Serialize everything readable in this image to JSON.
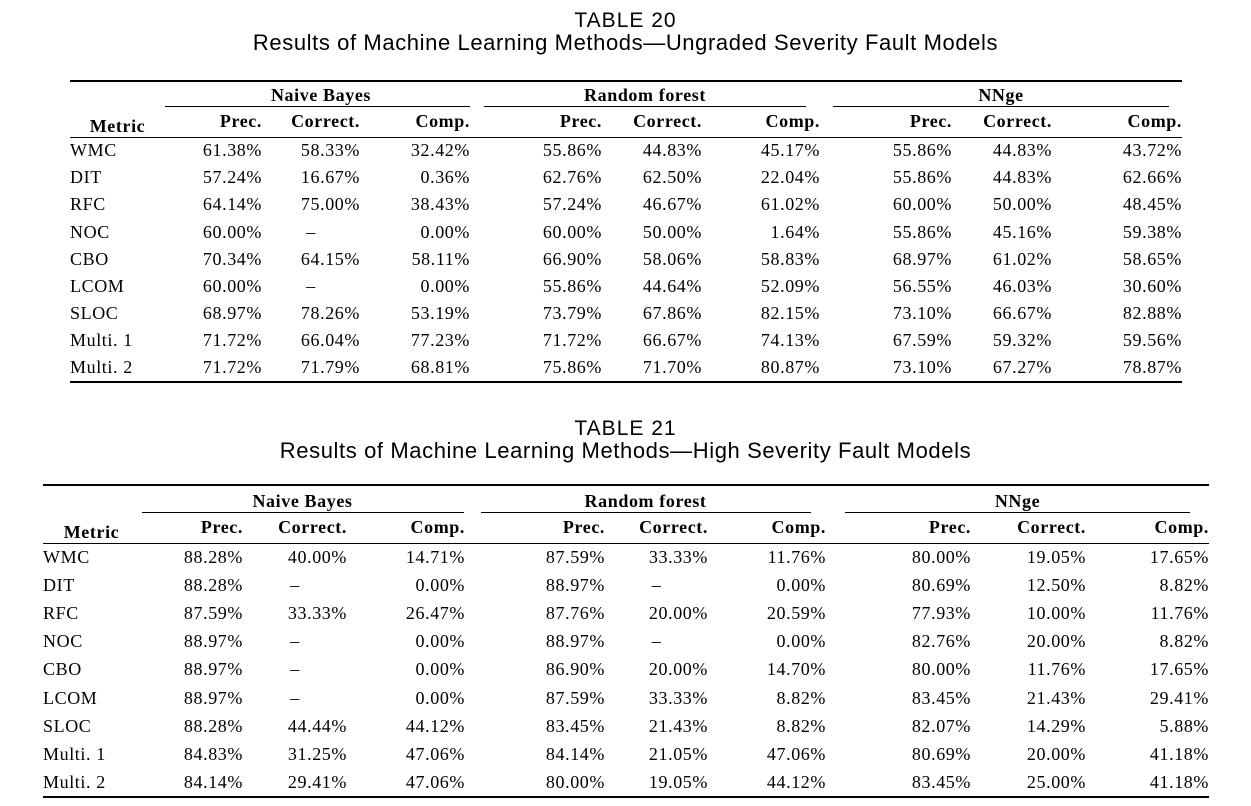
{
  "table20": {
    "number": "TABLE 20",
    "title": "Results of Machine Learning Methods—Ungraded Severity Fault Models",
    "metric_header": "Metric",
    "groups": [
      "Naive Bayes",
      "Random forest",
      "NNge"
    ],
    "subheaders": [
      "Prec.",
      "Correct.",
      "Comp."
    ],
    "rows": [
      {
        "metric": "WMC",
        "values": [
          "61.38%",
          "58.33%",
          "32.42%",
          "55.86%",
          "44.83%",
          "45.17%",
          "55.86%",
          "44.83%",
          "43.72%"
        ]
      },
      {
        "metric": "DIT",
        "values": [
          "57.24%",
          "16.67%",
          "0.36%",
          "62.76%",
          "62.50%",
          "22.04%",
          "55.86%",
          "44.83%",
          "62.66%"
        ]
      },
      {
        "metric": "RFC",
        "values": [
          "64.14%",
          "75.00%",
          "38.43%",
          "57.24%",
          "46.67%",
          "61.02%",
          "60.00%",
          "50.00%",
          "48.45%"
        ]
      },
      {
        "metric": "NOC",
        "values": [
          "60.00%",
          "–",
          "0.00%",
          "60.00%",
          "50.00%",
          "1.64%",
          "55.86%",
          "45.16%",
          "59.38%"
        ]
      },
      {
        "metric": "CBO",
        "values": [
          "70.34%",
          "64.15%",
          "58.11%",
          "66.90%",
          "58.06%",
          "58.83%",
          "68.97%",
          "61.02%",
          "58.65%"
        ]
      },
      {
        "metric": "LCOM",
        "values": [
          "60.00%",
          "–",
          "0.00%",
          "55.86%",
          "44.64%",
          "52.09%",
          "56.55%",
          "46.03%",
          "30.60%"
        ]
      },
      {
        "metric": "SLOC",
        "values": [
          "68.97%",
          "78.26%",
          "53.19%",
          "73.79%",
          "67.86%",
          "82.15%",
          "73.10%",
          "66.67%",
          "82.88%"
        ]
      },
      {
        "metric": "Multi. 1",
        "values": [
          "71.72%",
          "66.04%",
          "77.23%",
          "71.72%",
          "66.67%",
          "74.13%",
          "67.59%",
          "59.32%",
          "59.56%"
        ]
      },
      {
        "metric": "Multi. 2",
        "values": [
          "71.72%",
          "71.79%",
          "68.81%",
          "75.86%",
          "71.70%",
          "80.87%",
          "73.10%",
          "67.27%",
          "78.87%"
        ]
      }
    ]
  },
  "table21": {
    "number": "TABLE 21",
    "title": "Results of Machine Learning Methods—High Severity Fault Models",
    "metric_header": "Metric",
    "groups": [
      "Naive Bayes",
      "Random forest",
      "NNge"
    ],
    "subheaders": [
      "Prec.",
      "Correct.",
      "Comp."
    ],
    "rows": [
      {
        "metric": "WMC",
        "values": [
          "88.28%",
          "40.00%",
          "14.71%",
          "87.59%",
          "33.33%",
          "11.76%",
          "80.00%",
          "19.05%",
          "17.65%"
        ]
      },
      {
        "metric": "DIT",
        "values": [
          "88.28%",
          "–",
          "0.00%",
          "88.97%",
          "–",
          "0.00%",
          "80.69%",
          "12.50%",
          "8.82%"
        ]
      },
      {
        "metric": "RFC",
        "values": [
          "87.59%",
          "33.33%",
          "26.47%",
          "87.76%",
          "20.00%",
          "20.59%",
          "77.93%",
          "10.00%",
          "11.76%"
        ]
      },
      {
        "metric": "NOC",
        "values": [
          "88.97%",
          "–",
          "0.00%",
          "88.97%",
          "–",
          "0.00%",
          "82.76%",
          "20.00%",
          "8.82%"
        ]
      },
      {
        "metric": "CBO",
        "values": [
          "88.97%",
          "–",
          "0.00%",
          "86.90%",
          "20.00%",
          "14.70%",
          "80.00%",
          "11.76%",
          "17.65%"
        ]
      },
      {
        "metric": "LCOM",
        "values": [
          "88.97%",
          "–",
          "0.00%",
          "87.59%",
          "33.33%",
          "8.82%",
          "83.45%",
          "21.43%",
          "29.41%"
        ]
      },
      {
        "metric": "SLOC",
        "values": [
          "88.28%",
          "44.44%",
          "44.12%",
          "83.45%",
          "21.43%",
          "8.82%",
          "82.07%",
          "14.29%",
          "5.88%"
        ]
      },
      {
        "metric": "Multi. 1",
        "values": [
          "84.83%",
          "31.25%",
          "47.06%",
          "84.14%",
          "21.05%",
          "47.06%",
          "80.69%",
          "20.00%",
          "41.18%"
        ]
      },
      {
        "metric": "Multi. 2",
        "values": [
          "84.14%",
          "29.41%",
          "47.06%",
          "80.00%",
          "19.05%",
          "44.12%",
          "83.45%",
          "25.00%",
          "41.18%"
        ]
      }
    ]
  }
}
